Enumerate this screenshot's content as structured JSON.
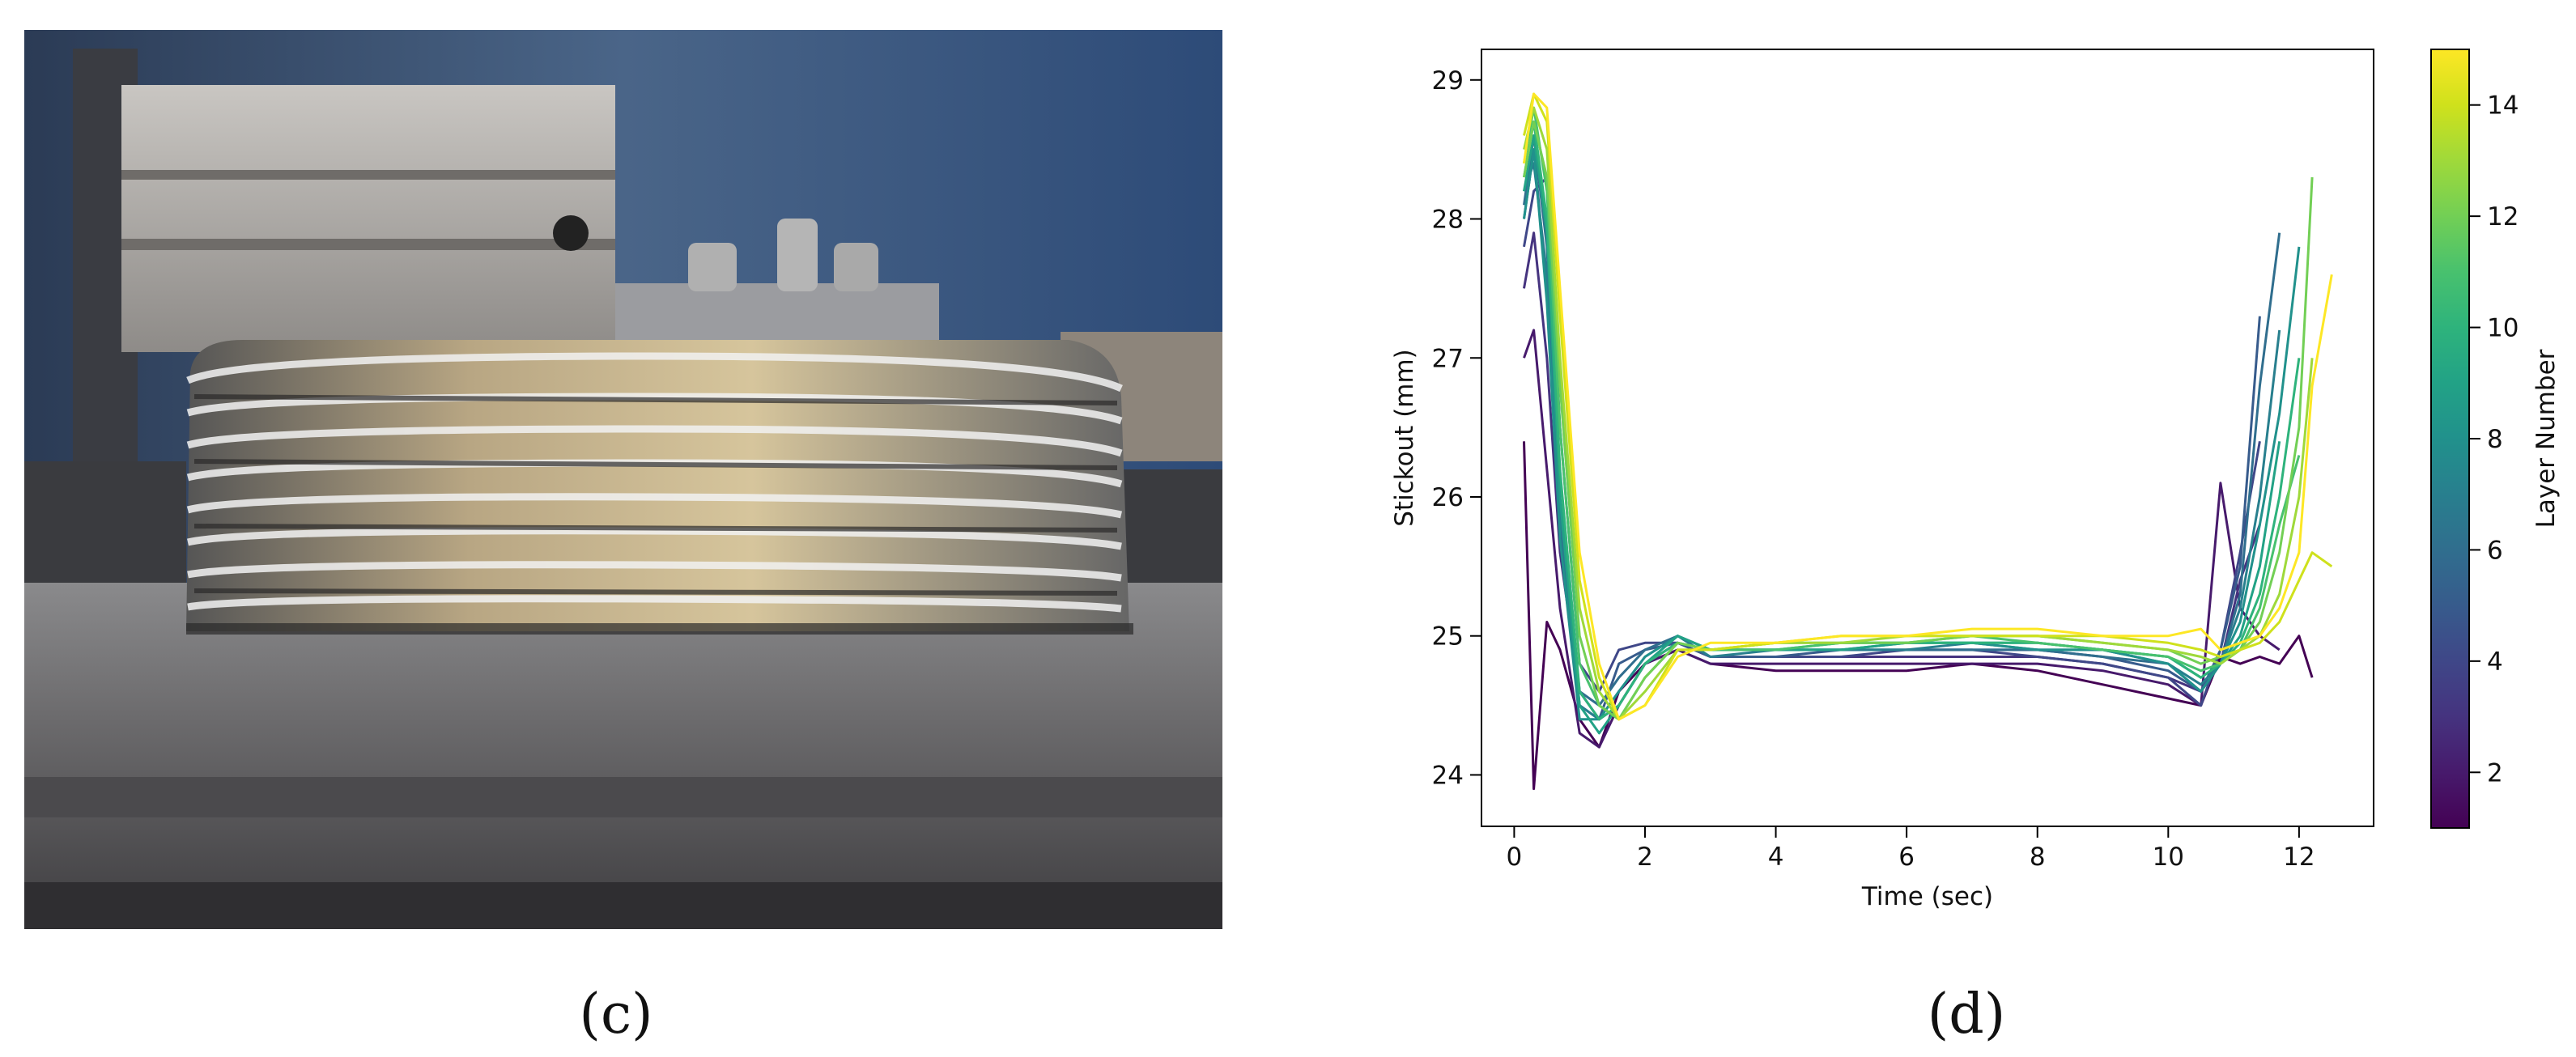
{
  "captions": [
    "(c)",
    "(d)"
  ],
  "chart_data": {
    "type": "line",
    "xlabel": "Time (sec)",
    "ylabel": "Stickout (mm)",
    "xlim": [
      -0.5,
      13.14
    ],
    "ylim": [
      23.63,
      29.22
    ],
    "xticks": [
      0,
      2,
      4,
      6,
      8,
      10,
      12
    ],
    "yticks": [
      24,
      25,
      26,
      27,
      28,
      29
    ],
    "colorbar": {
      "label": "Layer Number",
      "lim": [
        1,
        15
      ],
      "ticks": [
        2,
        4,
        6,
        8,
        10,
        12,
        14
      ]
    },
    "x": [
      0.15,
      0.3,
      0.5,
      0.7,
      1.0,
      1.3,
      1.6,
      2.0,
      2.5,
      3,
      4,
      5,
      6,
      7,
      8,
      9,
      10,
      10.5,
      10.8,
      11.1,
      11.4,
      11.7,
      12.0,
      12.2,
      12.5
    ],
    "series": [
      {
        "color": "#440154",
        "values": [
          26.4,
          23.9,
          25.1,
          24.9,
          24.4,
          24.2,
          24.6,
          24.8,
          24.9,
          24.8,
          24.75,
          24.75,
          24.75,
          24.8,
          24.75,
          24.65,
          24.55,
          24.5,
          24.85,
          24.8,
          24.85,
          24.8,
          25.0,
          24.7,
          null
        ]
      },
      {
        "color": "#471a6c",
        "values": [
          27.0,
          27.2,
          26.2,
          25.2,
          24.3,
          24.2,
          24.5,
          24.8,
          24.9,
          24.8,
          24.8,
          24.8,
          24.8,
          24.8,
          24.8,
          24.75,
          24.65,
          24.5,
          26.1,
          25.2,
          25.0,
          24.9,
          null,
          null,
          null
        ]
      },
      {
        "color": "#45337f",
        "values": [
          27.5,
          27.9,
          27.0,
          25.6,
          24.6,
          24.4,
          24.5,
          24.8,
          24.95,
          24.85,
          24.85,
          24.85,
          24.85,
          24.85,
          24.85,
          24.8,
          24.7,
          24.6,
          24.8,
          25.4,
          25.8,
          null,
          null,
          null,
          null
        ]
      },
      {
        "color": "#3f4788",
        "values": [
          27.8,
          28.2,
          28.3,
          26.5,
          24.8,
          24.6,
          24.9,
          24.95,
          24.95,
          24.85,
          24.85,
          24.85,
          24.9,
          24.9,
          24.85,
          24.8,
          24.7,
          24.5,
          24.9,
          25.6,
          26.4,
          null,
          null,
          null,
          null
        ]
      },
      {
        "color": "#375b8c",
        "values": [
          28.0,
          28.5,
          27.5,
          25.8,
          24.5,
          24.4,
          24.8,
          24.9,
          24.95,
          24.85,
          24.85,
          24.9,
          24.9,
          24.9,
          24.9,
          24.85,
          24.75,
          24.6,
          24.9,
          25.5,
          27.3,
          null,
          null,
          null,
          null
        ]
      },
      {
        "color": "#306e8e",
        "values": [
          28.1,
          28.6,
          27.8,
          26.0,
          24.6,
          24.5,
          24.7,
          24.9,
          25.0,
          24.9,
          24.9,
          24.9,
          24.9,
          24.9,
          24.9,
          24.85,
          24.8,
          24.6,
          24.8,
          25.3,
          26.8,
          27.9,
          null,
          null,
          null
        ]
      },
      {
        "color": "#287f8e",
        "values": [
          28.2,
          28.4,
          27.6,
          25.9,
          24.5,
          24.4,
          24.6,
          24.85,
          25.0,
          24.85,
          24.9,
          24.9,
          24.9,
          24.95,
          24.9,
          24.9,
          24.8,
          24.65,
          24.8,
          25.2,
          26.0,
          27.2,
          null,
          null,
          null
        ]
      },
      {
        "color": "#21918c",
        "values": [
          28.0,
          28.5,
          27.4,
          25.7,
          24.4,
          24.4,
          24.6,
          24.85,
          25.0,
          24.9,
          24.9,
          24.9,
          24.95,
          24.95,
          24.9,
          24.9,
          24.8,
          24.6,
          24.8,
          25.1,
          25.8,
          26.6,
          27.8,
          null,
          null
        ]
      },
      {
        "color": "#22a286",
        "values": [
          28.2,
          28.6,
          27.9,
          26.0,
          24.5,
          24.3,
          24.5,
          24.8,
          25.0,
          24.9,
          24.9,
          24.9,
          24.95,
          24.95,
          24.95,
          24.9,
          24.85,
          24.7,
          24.8,
          25.0,
          25.5,
          26.4,
          null,
          null,
          null
        ]
      },
      {
        "color": "#2eb37c",
        "values": [
          28.3,
          28.7,
          28.0,
          26.2,
          24.6,
          24.4,
          24.5,
          24.8,
          24.95,
          24.9,
          24.9,
          24.95,
          24.95,
          24.95,
          24.95,
          24.9,
          24.85,
          24.7,
          24.8,
          24.95,
          25.3,
          26.0,
          27.0,
          null,
          null
        ]
      },
      {
        "color": "#48c16e",
        "values": [
          28.4,
          28.8,
          28.2,
          26.5,
          24.8,
          24.5,
          24.4,
          24.7,
          24.95,
          24.9,
          24.9,
          24.95,
          24.95,
          25.0,
          24.95,
          24.9,
          24.85,
          24.75,
          24.8,
          24.9,
          25.2,
          25.8,
          26.3,
          null,
          null
        ]
      },
      {
        "color": "#72cf55",
        "values": [
          28.3,
          28.7,
          28.3,
          26.8,
          25.0,
          24.5,
          24.4,
          24.7,
          24.95,
          24.9,
          24.95,
          24.95,
          24.95,
          25.0,
          25.0,
          24.95,
          24.9,
          24.8,
          24.85,
          24.9,
          25.1,
          25.6,
          26.5,
          28.3,
          null
        ]
      },
      {
        "color": "#9fd93a",
        "values": [
          28.5,
          28.8,
          28.5,
          27.0,
          25.2,
          24.6,
          24.4,
          24.6,
          24.9,
          24.9,
          24.95,
          24.95,
          25.0,
          25.0,
          25.0,
          24.95,
          24.9,
          24.85,
          24.8,
          24.9,
          25.0,
          25.3,
          26.0,
          27.0,
          null
        ]
      },
      {
        "color": "#cfe11c",
        "values": [
          28.6,
          28.9,
          28.7,
          27.3,
          25.4,
          24.7,
          24.4,
          24.5,
          24.9,
          24.9,
          24.95,
          25.0,
          25.0,
          25.0,
          25.0,
          25.0,
          24.95,
          24.9,
          24.85,
          24.9,
          24.95,
          25.1,
          25.4,
          25.6,
          25.5
        ]
      },
      {
        "color": "#fde725",
        "values": [
          28.4,
          28.9,
          28.8,
          27.5,
          25.6,
          24.8,
          24.4,
          24.5,
          24.85,
          24.95,
          24.95,
          25.0,
          25.0,
          25.05,
          25.05,
          25.0,
          25.0,
          25.05,
          24.9,
          24.95,
          25.0,
          25.2,
          25.6,
          26.8,
          27.6
        ]
      }
    ]
  }
}
